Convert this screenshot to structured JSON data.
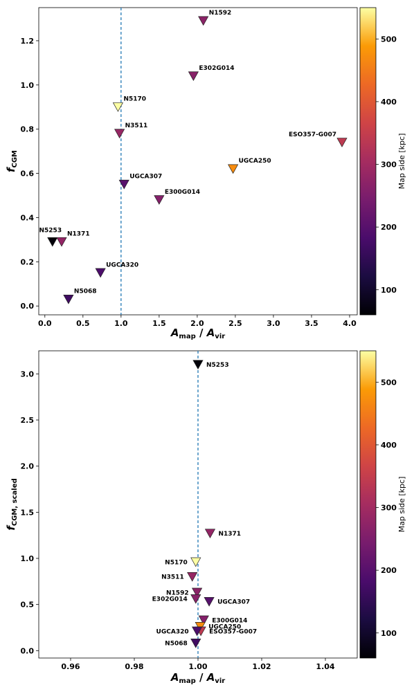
{
  "chart_data": [
    {
      "type": "scatter",
      "xlabel": "A_map / A_vir",
      "ylabel": "f_CGM",
      "xlim": [
        -0.08,
        4.1
      ],
      "ylim": [
        -0.04,
        1.35
      ],
      "xticks": [
        0.0,
        0.5,
        1.0,
        1.5,
        2.0,
        2.5,
        3.0,
        3.5,
        4.0
      ],
      "xtick_labels": [
        "0.0",
        "0.5",
        "1.0",
        "1.5",
        "2.0",
        "2.5",
        "3.0",
        "3.5",
        "4.0"
      ],
      "yticks": [
        0.0,
        0.2,
        0.4,
        0.6,
        0.8,
        1.0,
        1.2
      ],
      "ytick_labels": [
        "0.0",
        "0.2",
        "0.4",
        "0.6",
        "0.8",
        "1.0",
        "1.2"
      ],
      "vline_x": 1.0,
      "marker": "downward-triangle",
      "colorbar": {
        "label": "Map side [kpc]",
        "range": [
          60,
          550
        ],
        "ticks": [
          100,
          200,
          300,
          400,
          500
        ],
        "tick_labels": [
          "100",
          "200",
          "300",
          "400",
          "500"
        ],
        "colormap": "inferno"
      },
      "points": [
        {
          "name": "N1592",
          "x": 2.08,
          "y": 1.29,
          "c": 270,
          "label_pos": "above-right"
        },
        {
          "name": "E302G014",
          "x": 1.95,
          "y": 1.04,
          "c": 265,
          "label_pos": "above-right"
        },
        {
          "name": "N5170",
          "x": 0.96,
          "y": 0.9,
          "c": 550,
          "label_pos": "above-right"
        },
        {
          "name": "N3511",
          "x": 0.98,
          "y": 0.78,
          "c": 285,
          "label_pos": "above-right"
        },
        {
          "name": "ESO357-G007",
          "x": 3.9,
          "y": 0.74,
          "c": 340,
          "label_pos": "above-left"
        },
        {
          "name": "UGCA250",
          "x": 2.47,
          "y": 0.62,
          "c": 470,
          "label_pos": "above-right"
        },
        {
          "name": "UGCA307",
          "x": 1.04,
          "y": 0.55,
          "c": 200,
          "label_pos": "above-right"
        },
        {
          "name": "E300G014",
          "x": 1.5,
          "y": 0.48,
          "c": 260,
          "label_pos": "above-right"
        },
        {
          "name": "N5253",
          "x": 0.1,
          "y": 0.29,
          "c": 65,
          "label_pos": "above"
        },
        {
          "name": "N1371",
          "x": 0.22,
          "y": 0.29,
          "c": 280,
          "label_pos": "above-right"
        },
        {
          "name": "UGCA320",
          "x": 0.73,
          "y": 0.15,
          "c": 185,
          "label_pos": "above-right"
        },
        {
          "name": "N5068",
          "x": 0.31,
          "y": 0.03,
          "c": 170,
          "label_pos": "above-right"
        }
      ]
    },
    {
      "type": "scatter",
      "xlabel": "A_map / A_vir",
      "ylabel": "f_CGM, scaled",
      "xlim": [
        0.95,
        1.05
      ],
      "ylim": [
        -0.08,
        3.25
      ],
      "xticks": [
        0.96,
        0.98,
        1.0,
        1.02,
        1.04
      ],
      "xtick_labels": [
        "0.96",
        "0.98",
        "1.00",
        "1.02",
        "1.04"
      ],
      "yticks": [
        0.0,
        0.5,
        1.0,
        1.5,
        2.0,
        2.5,
        3.0
      ],
      "ytick_labels": [
        "0.0",
        "0.5",
        "1.0",
        "1.5",
        "2.0",
        "2.5",
        "3.0"
      ],
      "vline_x": 1.0,
      "marker": "downward-triangle",
      "colorbar": {
        "label": "Map side [kpc]",
        "range": [
          60,
          550
        ],
        "ticks": [
          100,
          200,
          300,
          400,
          500
        ],
        "tick_labels": [
          "100",
          "200",
          "300",
          "400",
          "500"
        ],
        "colormap": "inferno"
      },
      "points": [
        {
          "name": "N5253",
          "x": 1.0,
          "y": 3.1,
          "c": 65,
          "label_pos": "right"
        },
        {
          "name": "N1371",
          "x": 1.0038,
          "y": 1.27,
          "c": 280,
          "label_pos": "right"
        },
        {
          "name": "N5170",
          "x": 0.9993,
          "y": 0.96,
          "c": 550,
          "label_pos": "left"
        },
        {
          "name": "N3511",
          "x": 0.9982,
          "y": 0.8,
          "c": 285,
          "label_pos": "left"
        },
        {
          "name": "N1592",
          "x": 0.9997,
          "y": 0.63,
          "c": 270,
          "label_pos": "left"
        },
        {
          "name": "E302G014",
          "x": 0.9993,
          "y": 0.56,
          "c": 265,
          "label_pos": "left"
        },
        {
          "name": "UGCA307",
          "x": 1.0035,
          "y": 0.53,
          "c": 200,
          "label_pos": "right"
        },
        {
          "name": "E300G014",
          "x": 1.0018,
          "y": 0.33,
          "c": 260,
          "label_pos": "right"
        },
        {
          "name": "UGCA250",
          "x": 1.0007,
          "y": 0.26,
          "c": 470,
          "label_pos": "right"
        },
        {
          "name": "ESO357-G007",
          "x": 1.0009,
          "y": 0.21,
          "c": 340,
          "label_pos": "right"
        },
        {
          "name": "UGCA320",
          "x": 0.9997,
          "y": 0.21,
          "c": 185,
          "label_pos": "left"
        },
        {
          "name": "N5068",
          "x": 0.9993,
          "y": 0.08,
          "c": 170,
          "label_pos": "left"
        }
      ]
    }
  ]
}
